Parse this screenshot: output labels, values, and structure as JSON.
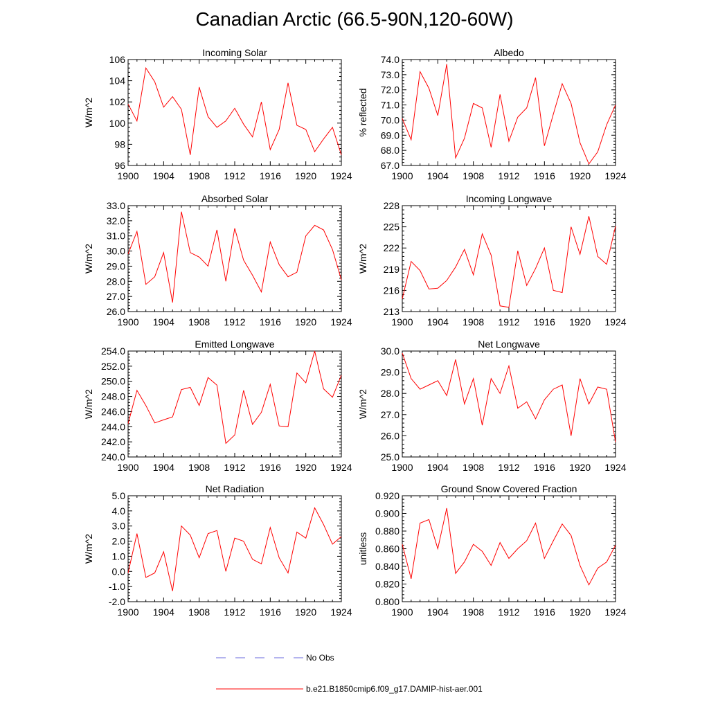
{
  "figure": {
    "title": "Canadian Arctic (66.5-90N,120-60W)"
  },
  "legend": {
    "entries": [
      {
        "label": "No Obs",
        "color": "#6a6adc",
        "dash": true
      },
      {
        "label": "b.e21.B1850cmip6.f09_g17.DAMIP-hist-aer.001",
        "color": "#ff0000",
        "dash": false
      }
    ]
  },
  "colors": {
    "series": "#ff0000",
    "axis": "#000000"
  },
  "chart_data": [
    {
      "type": "line",
      "title": "Incoming Solar",
      "ylabel": "W/m^2",
      "xlabel": "",
      "xlim": [
        1900,
        1924
      ],
      "ylim": [
        96,
        106
      ],
      "yticks": [
        "96",
        "98",
        "100",
        "102",
        "104",
        "106"
      ],
      "xticks": [
        "1900",
        "1904",
        "1908",
        "1912",
        "1916",
        "1920",
        "1924"
      ],
      "x": [
        1900,
        1901,
        1902,
        1903,
        1904,
        1905,
        1906,
        1907,
        1908,
        1909,
        1910,
        1911,
        1912,
        1913,
        1914,
        1915,
        1916,
        1917,
        1918,
        1919,
        1920,
        1921,
        1922,
        1923,
        1924
      ],
      "series": [
        {
          "values": [
            101.8,
            100.2,
            105.2,
            103.9,
            101.5,
            102.5,
            101.3,
            97.0,
            103.4,
            100.6,
            99.6,
            100.2,
            101.4,
            99.9,
            98.7,
            102.0,
            97.5,
            99.4,
            103.8,
            99.8,
            99.4,
            97.3,
            98.5,
            99.6,
            97.0
          ]
        }
      ]
    },
    {
      "type": "line",
      "title": "Albedo",
      "ylabel": "% reflected",
      "xlabel": "",
      "xlim": [
        1900,
        1924
      ],
      "ylim": [
        67.0,
        74.0
      ],
      "yticks": [
        "67.0",
        "68.0",
        "69.0",
        "70.0",
        "71.0",
        "72.0",
        "73.0",
        "74.0"
      ],
      "xticks": [
        "1900",
        "1904",
        "1908",
        "1912",
        "1916",
        "1920",
        "1924"
      ],
      "x": [
        1900,
        1901,
        1902,
        1903,
        1904,
        1905,
        1906,
        1907,
        1908,
        1909,
        1910,
        1911,
        1912,
        1913,
        1914,
        1915,
        1916,
        1917,
        1918,
        1919,
        1920,
        1921,
        1922,
        1923,
        1924
      ],
      "series": [
        {
          "values": [
            70.1,
            68.7,
            73.2,
            72.1,
            70.3,
            73.7,
            67.5,
            68.8,
            71.1,
            70.8,
            68.2,
            71.7,
            68.6,
            70.2,
            70.8,
            72.8,
            68.3,
            70.4,
            72.4,
            71.1,
            68.5,
            67.1,
            67.9,
            69.7,
            71.0
          ]
        }
      ]
    },
    {
      "type": "line",
      "title": "Absorbed Solar",
      "ylabel": "W/m^2",
      "xlabel": "",
      "xlim": [
        1900,
        1924
      ],
      "ylim": [
        26.0,
        33.0
      ],
      "yticks": [
        "26.0",
        "27.0",
        "28.0",
        "29.0",
        "30.0",
        "31.0",
        "32.0",
        "33.0"
      ],
      "xticks": [
        "1900",
        "1904",
        "1908",
        "1912",
        "1916",
        "1920",
        "1924"
      ],
      "x": [
        1900,
        1901,
        1902,
        1903,
        1904,
        1905,
        1906,
        1907,
        1908,
        1909,
        1910,
        1911,
        1912,
        1913,
        1914,
        1915,
        1916,
        1917,
        1918,
        1919,
        1920,
        1921,
        1922,
        1923,
        1924
      ],
      "series": [
        {
          "values": [
            29.8,
            31.3,
            27.8,
            28.3,
            29.9,
            26.6,
            32.6,
            29.9,
            29.6,
            29.0,
            31.4,
            28.0,
            31.5,
            29.4,
            28.4,
            27.3,
            30.6,
            29.1,
            28.3,
            28.6,
            31.0,
            31.7,
            31.4,
            30.1,
            28.1
          ]
        }
      ]
    },
    {
      "type": "line",
      "title": "Incoming Longwave",
      "ylabel": "W/m^2",
      "xlabel": "",
      "xlim": [
        1900,
        1924
      ],
      "ylim": [
        213,
        228
      ],
      "yticks": [
        "213",
        "216",
        "219",
        "222",
        "225",
        "228"
      ],
      "xticks": [
        "1900",
        "1904",
        "1908",
        "1912",
        "1916",
        "1920",
        "1924"
      ],
      "x": [
        1900,
        1901,
        1902,
        1903,
        1904,
        1905,
        1906,
        1907,
        1908,
        1909,
        1910,
        1911,
        1912,
        1913,
        1914,
        1915,
        1916,
        1917,
        1918,
        1919,
        1920,
        1921,
        1922,
        1923,
        1924
      ],
      "series": [
        {
          "values": [
            214.8,
            220.1,
            218.8,
            216.2,
            216.3,
            217.4,
            219.3,
            221.8,
            218.2,
            224.0,
            221.0,
            213.8,
            213.6,
            221.6,
            216.7,
            219.1,
            222.0,
            216.0,
            215.7,
            225.0,
            221.1,
            226.5,
            220.8,
            219.7,
            225.1
          ]
        }
      ]
    },
    {
      "type": "line",
      "title": "Emitted Longwave",
      "ylabel": "W/m^2",
      "xlabel": "",
      "xlim": [
        1900,
        1924
      ],
      "ylim": [
        240.0,
        254.0
      ],
      "yticks": [
        "240.0",
        "242.0",
        "244.0",
        "246.0",
        "248.0",
        "250.0",
        "252.0",
        "254.0"
      ],
      "xticks": [
        "1900",
        "1904",
        "1908",
        "1912",
        "1916",
        "1920",
        "1924"
      ],
      "x": [
        1900,
        1901,
        1902,
        1903,
        1904,
        1905,
        1906,
        1907,
        1908,
        1909,
        1910,
        1911,
        1912,
        1913,
        1914,
        1915,
        1916,
        1917,
        1918,
        1919,
        1920,
        1921,
        1922,
        1923,
        1924
      ],
      "series": [
        {
          "values": [
            244.4,
            248.8,
            246.8,
            244.5,
            244.9,
            245.3,
            248.9,
            249.2,
            246.8,
            250.5,
            249.5,
            241.8,
            242.9,
            248.8,
            244.3,
            245.9,
            249.6,
            244.1,
            244.0,
            251.1,
            249.8,
            254.0,
            249.0,
            247.9,
            250.8
          ]
        }
      ]
    },
    {
      "type": "line",
      "title": "Net Longwave",
      "ylabel": "W/m^2",
      "xlabel": "",
      "xlim": [
        1900,
        1924
      ],
      "ylim": [
        25.0,
        30.0
      ],
      "yticks": [
        "25.0",
        "26.0",
        "27.0",
        "28.0",
        "29.0",
        "30.0"
      ],
      "xticks": [
        "1900",
        "1904",
        "1908",
        "1912",
        "1916",
        "1920",
        "1924"
      ],
      "x": [
        1900,
        1901,
        1902,
        1903,
        1904,
        1905,
        1906,
        1907,
        1908,
        1909,
        1910,
        1911,
        1912,
        1913,
        1914,
        1915,
        1916,
        1917,
        1918,
        1919,
        1920,
        1921,
        1922,
        1923,
        1924
      ],
      "series": [
        {
          "values": [
            29.9,
            28.7,
            28.2,
            28.4,
            28.6,
            27.9,
            29.6,
            27.5,
            28.7,
            26.5,
            28.7,
            28.0,
            29.3,
            27.3,
            27.6,
            26.8,
            27.7,
            28.2,
            28.4,
            26.0,
            28.7,
            27.5,
            28.3,
            28.2,
            25.7
          ]
        }
      ]
    },
    {
      "type": "line",
      "title": "Net Radiation",
      "ylabel": "W/m^2",
      "xlabel": "",
      "xlim": [
        1900,
        1924
      ],
      "ylim": [
        -2.0,
        5.0
      ],
      "yticks": [
        "-2.0",
        "-1.0",
        "0.0",
        "1.0",
        "2.0",
        "3.0",
        "4.0",
        "5.0"
      ],
      "xticks": [
        "1900",
        "1904",
        "1908",
        "1912",
        "1916",
        "1920",
        "1924"
      ],
      "x": [
        1900,
        1901,
        1902,
        1903,
        1904,
        1905,
        1906,
        1907,
        1908,
        1909,
        1910,
        1911,
        1912,
        1913,
        1914,
        1915,
        1916,
        1917,
        1918,
        1919,
        1920,
        1921,
        1922,
        1923,
        1924
      ],
      "series": [
        {
          "values": [
            -0.1,
            2.5,
            -0.4,
            -0.1,
            1.3,
            -1.3,
            3.0,
            2.4,
            0.9,
            2.5,
            2.7,
            0.0,
            2.2,
            2.0,
            0.8,
            0.5,
            2.9,
            0.9,
            -0.1,
            2.6,
            2.2,
            4.2,
            3.1,
            1.8,
            2.3
          ]
        }
      ]
    },
    {
      "type": "line",
      "title": "Ground Snow Covered Fraction",
      "ylabel": "unitless",
      "xlabel": "",
      "xlim": [
        1900,
        1924
      ],
      "ylim": [
        0.8,
        0.92
      ],
      "yticks": [
        "0.800",
        "0.820",
        "0.840",
        "0.860",
        "0.880",
        "0.900",
        "0.920"
      ],
      "xticks": [
        "1900",
        "1904",
        "1908",
        "1912",
        "1916",
        "1920",
        "1924"
      ],
      "x": [
        1900,
        1901,
        1902,
        1903,
        1904,
        1905,
        1906,
        1907,
        1908,
        1909,
        1910,
        1911,
        1912,
        1913,
        1914,
        1915,
        1916,
        1917,
        1918,
        1919,
        1920,
        1921,
        1922,
        1923,
        1924
      ],
      "series": [
        {
          "values": [
            0.865,
            0.826,
            0.889,
            0.893,
            0.86,
            0.906,
            0.832,
            0.845,
            0.865,
            0.857,
            0.841,
            0.867,
            0.849,
            0.86,
            0.869,
            0.889,
            0.849,
            0.869,
            0.888,
            0.875,
            0.841,
            0.819,
            0.838,
            0.845,
            0.864
          ]
        }
      ]
    }
  ]
}
